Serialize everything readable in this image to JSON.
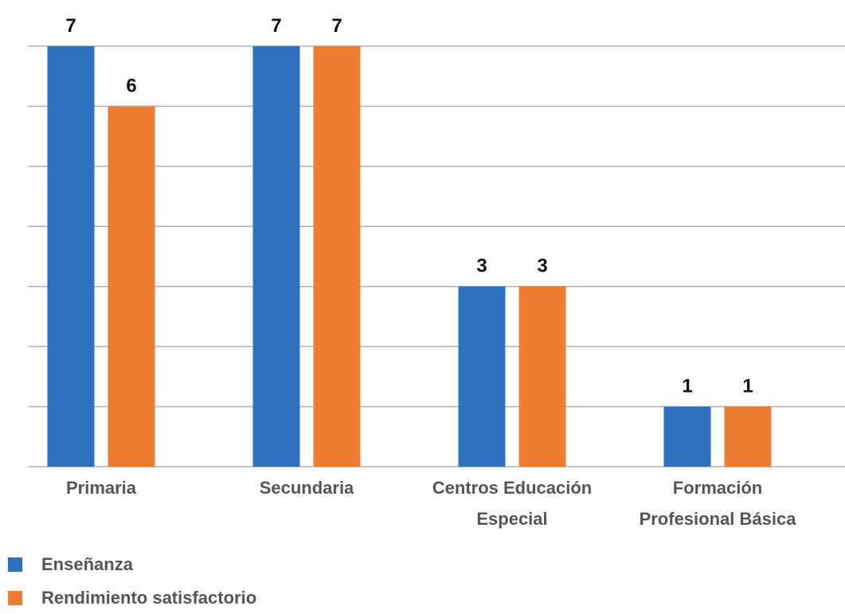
{
  "chart_data": {
    "type": "bar",
    "categories": [
      "Primaria",
      "Secundaria",
      "Centros Educación Especial",
      "Formación Profesional Básica"
    ],
    "series": [
      {
        "name": "Enseñanza",
        "color": "#2f71c0",
        "values": [
          7,
          7,
          3,
          1
        ]
      },
      {
        "name": "Rendimiento satisfactorio",
        "color": "#ef7d31",
        "values": [
          6,
          7,
          3,
          1
        ]
      }
    ],
    "ylim": [
      0,
      7
    ],
    "yticks": [
      0,
      1,
      2,
      3,
      4,
      5,
      6,
      7
    ],
    "grid": true
  }
}
